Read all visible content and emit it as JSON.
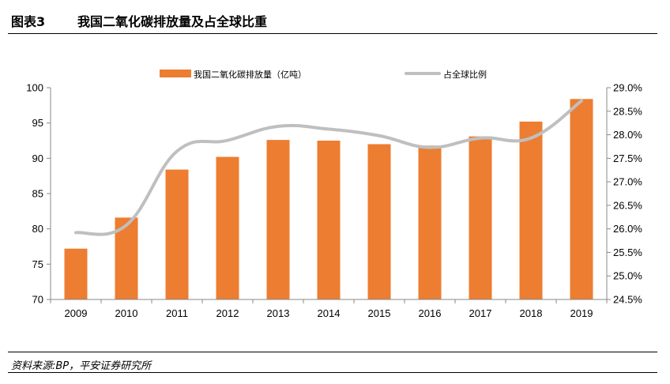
{
  "figure": {
    "number": "图表3",
    "title": "我国二氧化碳排放量及占全球比重",
    "source": "资料来源:BP，平安证券研究所"
  },
  "chart_data": {
    "type": "bar+line",
    "categories": [
      "2009",
      "2010",
      "2011",
      "2012",
      "2013",
      "2014",
      "2015",
      "2016",
      "2017",
      "2018",
      "2019"
    ],
    "series": [
      {
        "name": "我国二氧化碳排放量（亿吨）",
        "type": "bar",
        "axis": "left",
        "color": "#ED7D31",
        "values": [
          77.2,
          81.6,
          88.4,
          90.2,
          92.6,
          92.5,
          92.0,
          91.8,
          93.1,
          95.2,
          98.4
        ]
      },
      {
        "name": "占全球比例",
        "type": "line",
        "axis": "right",
        "color": "#BFBFBF",
        "values": [
          25.92,
          26.08,
          27.65,
          27.88,
          28.18,
          28.12,
          27.98,
          27.73,
          27.93,
          27.93,
          28.72
        ]
      }
    ],
    "y_left": {
      "min": 70,
      "max": 100,
      "ticks": [
        "70",
        "75",
        "80",
        "85",
        "90",
        "95",
        "100"
      ]
    },
    "y_right": {
      "min": 24.5,
      "max": 29.0,
      "ticks": [
        "24.5%",
        "25.0%",
        "25.5%",
        "26.0%",
        "26.5%",
        "27.0%",
        "27.5%",
        "28.0%",
        "28.5%",
        "29.0%"
      ]
    },
    "legend_position": "top"
  }
}
